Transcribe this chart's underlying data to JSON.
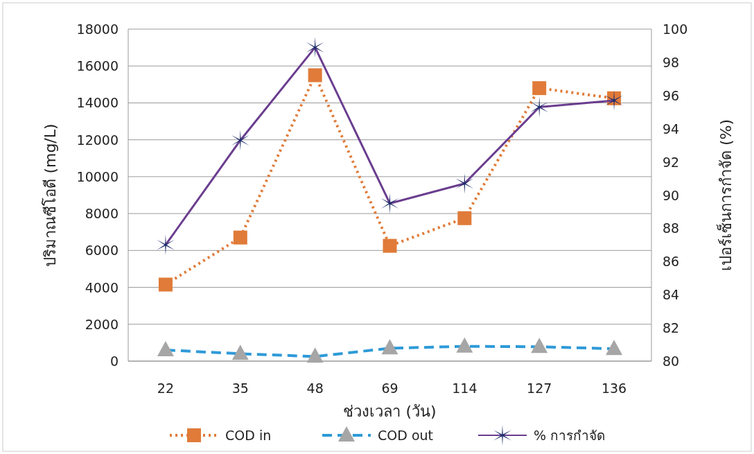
{
  "chart_data": {
    "type": "line",
    "xlabel": "ช่วงเวลา (วัน)",
    "ylabel": "ปริมาณซีโอดี (mg/L)",
    "y2label": "เปอร์เซ็นการกำจัด (%)",
    "categories": [
      "22",
      "35",
      "48",
      "69",
      "114",
      "127",
      "136"
    ],
    "series": [
      {
        "name": "COD in",
        "color": "#e07b39",
        "marker": "square",
        "line_style": "dotted",
        "values": [
          4150,
          6700,
          15500,
          6250,
          7750,
          14800,
          14250
        ]
      },
      {
        "name": "COD out",
        "color": "#2e9ad8",
        "marker": "triangle",
        "line_style": "dashed",
        "values": [
          600,
          400,
          250,
          700,
          800,
          780,
          670
        ]
      },
      {
        "name": "% การกำจัด",
        "color": "#6a3d8f",
        "marker": "cross",
        "line_style": "solid",
        "axis": "y2",
        "values": [
          87.0,
          93.3,
          98.9,
          89.5,
          90.7,
          95.3,
          95.7
        ]
      }
    ],
    "ylim": [
      0,
      18000
    ],
    "yticks": [
      0,
      2000,
      4000,
      6000,
      8000,
      10000,
      12000,
      14000,
      16000,
      18000
    ],
    "y2lim": [
      80,
      100
    ],
    "y2ticks": [
      80,
      82,
      84,
      86,
      88,
      90,
      92,
      94,
      96,
      98,
      100
    ],
    "grid": "y",
    "legend": "bottom"
  }
}
